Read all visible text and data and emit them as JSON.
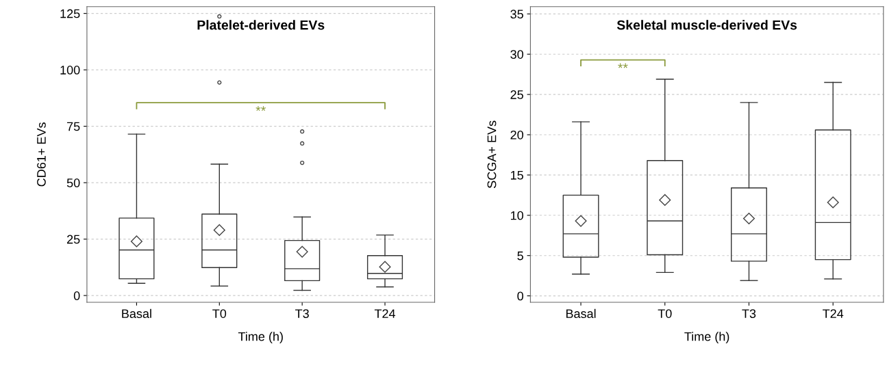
{
  "chart_data": [
    {
      "type": "box",
      "title": "Platelet-derived EVs",
      "xlabel": "Time (h)",
      "ylabel": "CD61+ EVs",
      "categories": [
        "Basal",
        "T0",
        "T3",
        "T24"
      ],
      "boxes": [
        {
          "low": 5.4,
          "q1": 7.4,
          "median": 20.2,
          "q3": 34.3,
          "high": 71.5,
          "mean": 24.0
        },
        {
          "low": 4.2,
          "q1": 12.4,
          "median": 20.2,
          "q3": 36.1,
          "high": 58.2,
          "mean": 29.0,
          "outliers": [
            94.4,
            123.7
          ]
        },
        {
          "low": 2.3,
          "q1": 6.6,
          "median": 11.9,
          "q3": 24.4,
          "high": 34.8,
          "mean": 19.4,
          "outliers": [
            58.8,
            67.4,
            72.7
          ]
        },
        {
          "low": 3.8,
          "q1": 7.4,
          "median": 9.8,
          "q3": 17.7,
          "high": 26.8,
          "mean": 12.7
        }
      ],
      "ylim": [
        -3,
        128
      ],
      "yticks": [
        0,
        25,
        50,
        75,
        100,
        125
      ],
      "grid": "y",
      "annotations": [
        "**"
      ]
    },
    {
      "type": "box",
      "title": "Skeletal muscle-derived EVs",
      "xlabel": "Time (h)",
      "ylabel": "SCGA+ EVs",
      "categories": [
        "Basal",
        "T0",
        "T3",
        "T24"
      ],
      "boxes": [
        {
          "low": 2.7,
          "q1": 4.8,
          "median": 7.7,
          "q3": 12.5,
          "high": 21.6,
          "mean": 9.3
        },
        {
          "low": 2.9,
          "q1": 5.1,
          "median": 9.3,
          "q3": 16.8,
          "high": 26.9,
          "mean": 11.9
        },
        {
          "low": 1.9,
          "q1": 4.3,
          "median": 7.7,
          "q3": 13.4,
          "high": 24.0,
          "mean": 9.6
        },
        {
          "low": 2.1,
          "q1": 4.5,
          "median": 9.1,
          "q3": 20.6,
          "high": 26.5,
          "mean": 11.6
        }
      ],
      "ylim": [
        -0.8,
        35.9
      ],
      "yticks": [
        0,
        5,
        10,
        15,
        20,
        25,
        30,
        35
      ],
      "grid": "y",
      "annotations": [
        "**"
      ]
    }
  ]
}
